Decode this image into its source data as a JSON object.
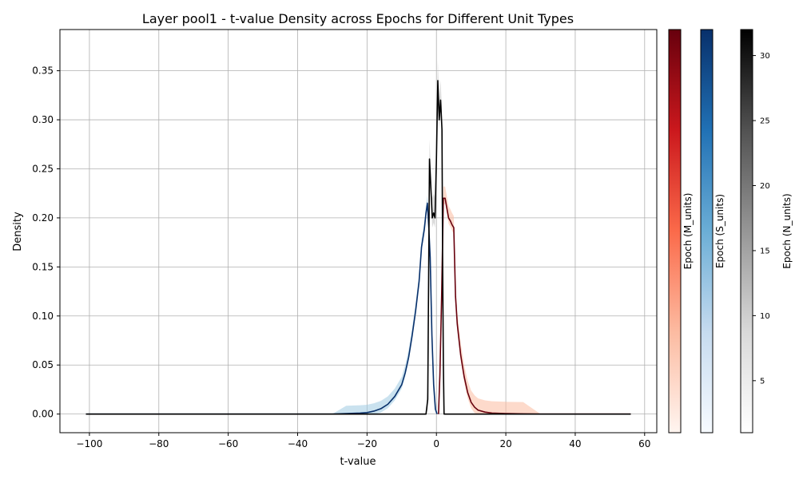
{
  "chart_data": {
    "type": "line",
    "title": "Layer pool1 - t-value Density across Epochs for Different Unit Types",
    "xlabel": "t-value",
    "ylabel": "Density",
    "xlim": [
      -108.5,
      63.5
    ],
    "ylim": [
      -0.019,
      0.392
    ],
    "xticks": [
      -100,
      -80,
      -60,
      -40,
      -20,
      0,
      20,
      40,
      60
    ],
    "yticks": [
      0.0,
      0.05,
      0.1,
      0.15,
      0.2,
      0.25,
      0.3,
      0.35
    ],
    "xtick_labels": [
      "−100",
      "−80",
      "−60",
      "−40",
      "−20",
      "0",
      "20",
      "40",
      "60"
    ],
    "ytick_labels": [
      "0.00",
      "0.05",
      "0.10",
      "0.15",
      "0.20",
      "0.25",
      "0.30",
      "0.35"
    ],
    "grid": true,
    "series": [
      {
        "group": "S_units",
        "color": "#08306b",
        "band_color": "#9ecae1",
        "x": [
          -101,
          -30,
          -26,
          -22,
          -20,
          -18,
          -16,
          -14,
          -12,
          -10,
          -9,
          -8,
          -7,
          -6,
          -5,
          -4.3,
          -3.5,
          -3,
          -2.6,
          -2.2,
          -1.8,
          -1.3,
          -0.8,
          -0.3,
          0.2
        ],
        "y": [
          0.0,
          0.0,
          0.0005,
          0.001,
          0.0015,
          0.003,
          0.0055,
          0.01,
          0.018,
          0.03,
          0.042,
          0.058,
          0.08,
          0.105,
          0.135,
          0.17,
          0.188,
          0.205,
          0.215,
          0.19,
          0.16,
          0.08,
          0.03,
          0.005,
          0.0
        ],
        "band": 0.008
      },
      {
        "group": "M_units",
        "color": "#67000d",
        "band_color": "#fcbba1",
        "x": [
          0.6,
          1.0,
          1.5,
          2.0,
          2.5,
          3.0,
          3.5,
          4.0,
          4.5,
          5.0,
          5.5,
          6.0,
          7.0,
          8.0,
          9.0,
          10.0,
          11.0,
          12.0,
          14.0,
          16.0,
          20.0,
          25.0,
          30.0,
          56.0
        ],
        "y": [
          0.0,
          0.04,
          0.12,
          0.22,
          0.22,
          0.21,
          0.2,
          0.197,
          0.193,
          0.19,
          0.12,
          0.092,
          0.06,
          0.038,
          0.022,
          0.012,
          0.007,
          0.004,
          0.002,
          0.001,
          0.0005,
          0.0002,
          0.0,
          0.0
        ],
        "band": 0.012
      },
      {
        "group": "N_units",
        "color": "#000000",
        "band_color": "#bdbdbd",
        "x": [
          -101,
          -3.0,
          -2.5,
          -2.0,
          -1.6,
          -1.2,
          -0.8,
          -0.4,
          0.0,
          0.4,
          0.8,
          1.2,
          1.6,
          1.8,
          2.0,
          2.2,
          2.4,
          2.6,
          56.0
        ],
        "y": [
          0.0,
          0.0,
          0.015,
          0.26,
          0.23,
          0.2,
          0.205,
          0.2,
          0.26,
          0.34,
          0.3,
          0.32,
          0.29,
          0.15,
          0.05,
          0.0,
          0.0,
          0.0,
          0.0
        ],
        "band": 0.02
      }
    ],
    "colorbars": [
      {
        "label": "Epoch (M_units)",
        "colors": [
          "#fff5f0",
          "#fcbba1",
          "#fb6a4a",
          "#cb181d",
          "#67000d"
        ],
        "ticks": []
      },
      {
        "label": "Epoch (S_units)",
        "colors": [
          "#f7fbff",
          "#c6dbef",
          "#6baed6",
          "#2171b5",
          "#08306b"
        ],
        "ticks": []
      },
      {
        "label": "Epoch (N_units)",
        "colors": [
          "#ffffff",
          "#d9d9d9",
          "#969696",
          "#525252",
          "#000000"
        ],
        "range": [
          1,
          32
        ],
        "ticks": [
          5,
          10,
          15,
          20,
          25,
          30
        ]
      }
    ]
  }
}
